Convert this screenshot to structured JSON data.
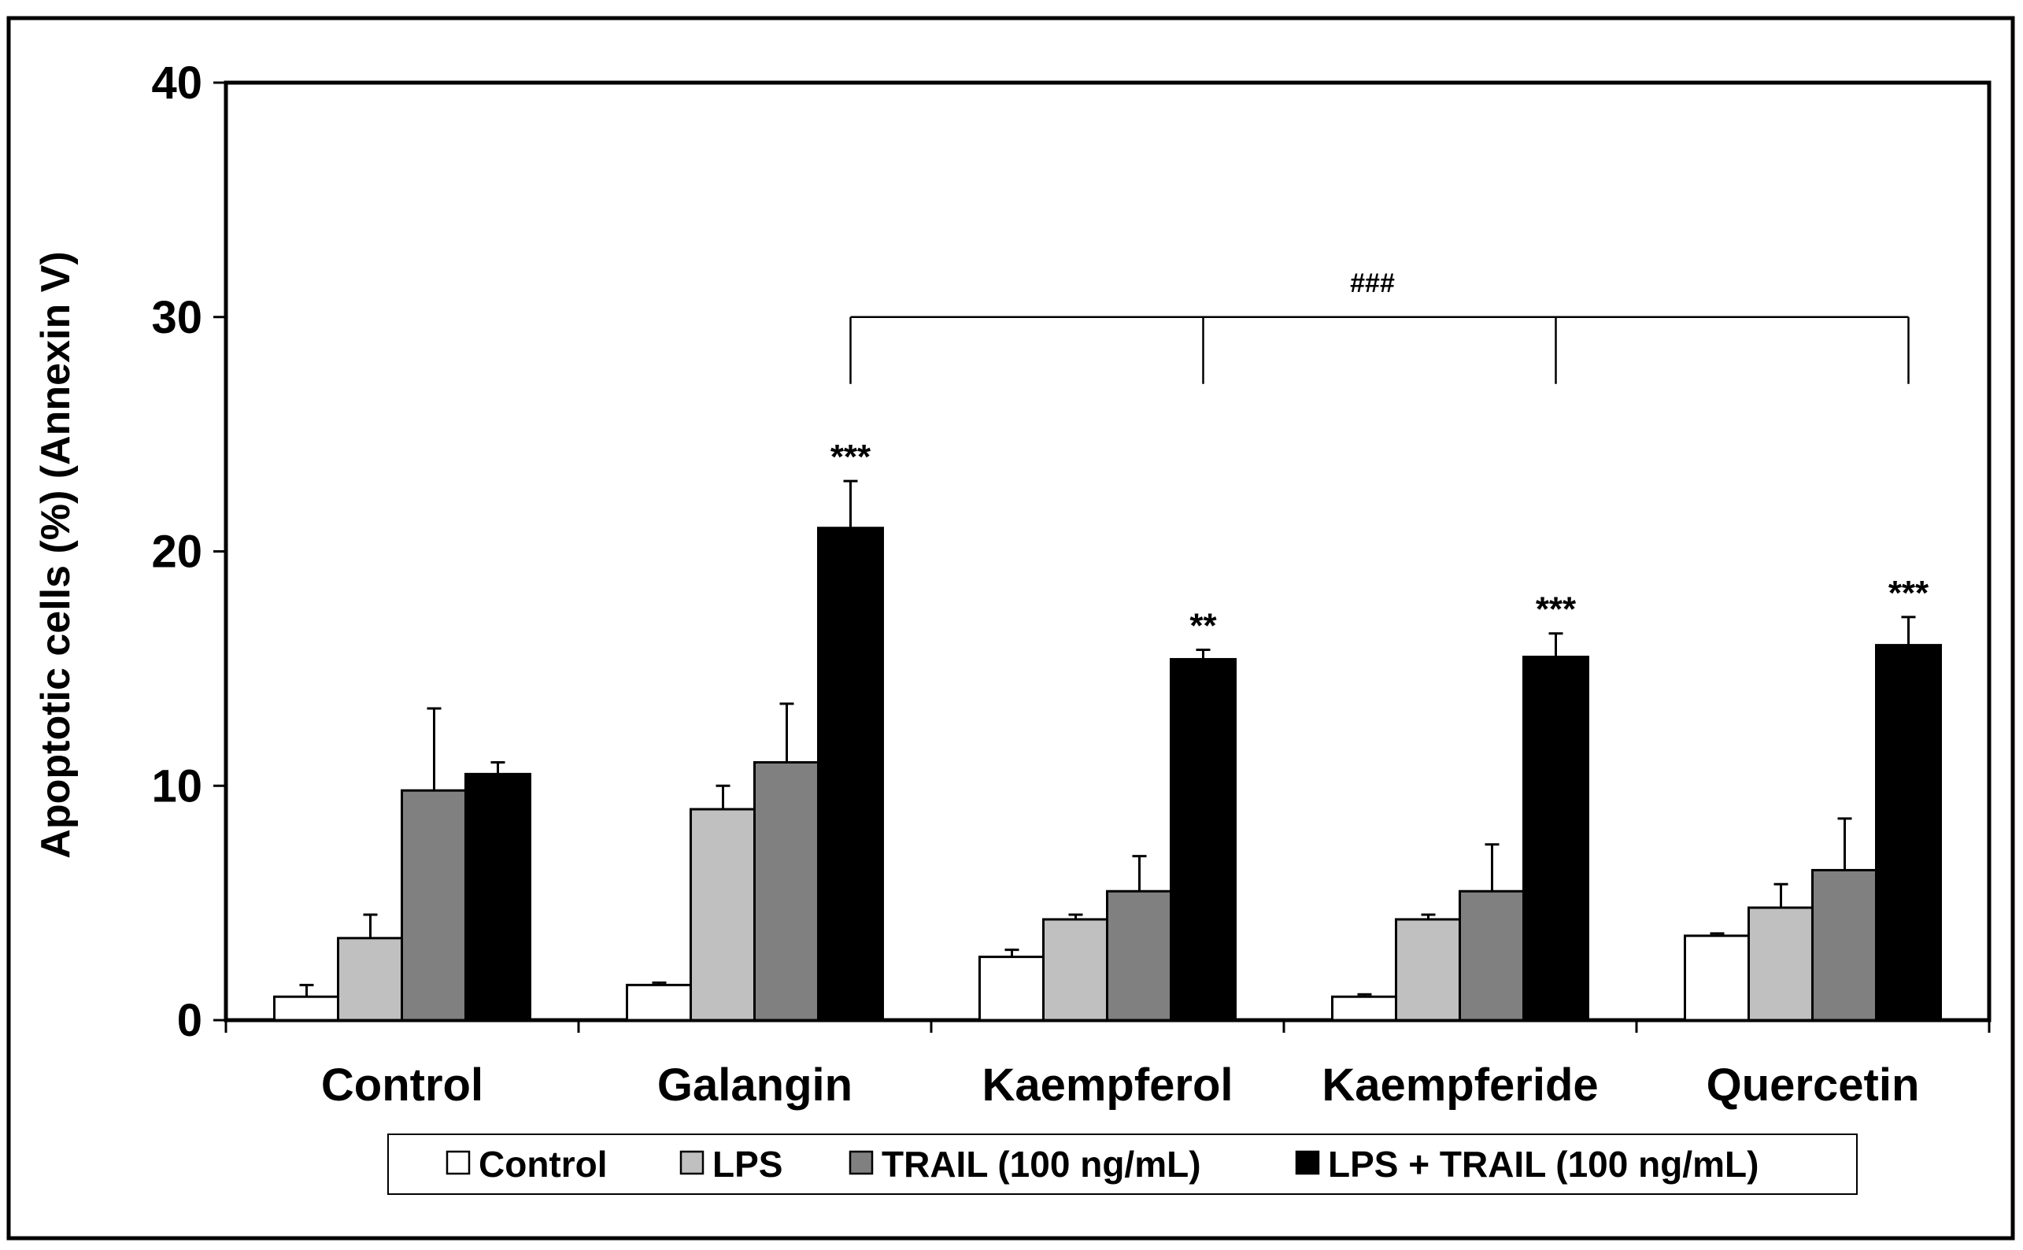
{
  "chart_data": {
    "type": "bar",
    "title": "",
    "xlabel": "",
    "ylabel": "Apoptotic cells (%) (Annexin V)",
    "ylim": [
      0,
      40
    ],
    "yticks": [
      0,
      10,
      20,
      30,
      40
    ],
    "grid": false,
    "legend_position": "bottom",
    "categories": [
      "Control",
      "Galangin",
      "Kaempferol",
      "Kaempferide",
      "Quercetin"
    ],
    "series": [
      {
        "name": "Control",
        "color": "#ffffff",
        "values": [
          1.0,
          1.5,
          2.7,
          1.0,
          3.6
        ],
        "errors": [
          0.5,
          0.1,
          0.3,
          0.1,
          0.1
        ]
      },
      {
        "name": "LPS",
        "color": "#c0c0c0",
        "values": [
          3.5,
          9.0,
          4.3,
          4.3,
          4.8
        ],
        "errors": [
          1.0,
          1.0,
          0.2,
          0.2,
          1.0
        ]
      },
      {
        "name": "TRAIL (100 ng/mL)",
        "color": "#808080",
        "values": [
          9.8,
          11.0,
          5.5,
          5.5,
          6.4
        ],
        "errors": [
          3.5,
          2.5,
          1.5,
          2.0,
          2.2
        ]
      },
      {
        "name": "LPS + TRAIL (100 ng/mL)",
        "color": "#000000",
        "values": [
          10.5,
          21.0,
          15.4,
          15.5,
          16.0
        ],
        "errors": [
          0.5,
          2.0,
          0.4,
          1.0,
          1.2
        ]
      }
    ],
    "significance": [
      "",
      "***",
      "**",
      "***",
      "***"
    ],
    "bracket": {
      "label": "###",
      "from_category": "Galangin",
      "to_category": "Quercetin",
      "level": 30
    }
  }
}
